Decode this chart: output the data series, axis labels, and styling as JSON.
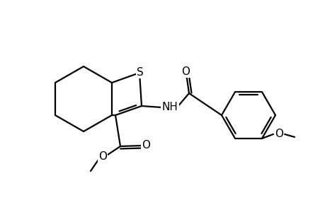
{
  "background_color": "#ffffff",
  "line_color": "#000000",
  "line_width": 1.6,
  "fig_width": 4.6,
  "fig_height": 3.0,
  "dpi": 100,
  "label_fontsize": 11,
  "labels": {
    "S": "S",
    "NH": "NH",
    "O_amide": "O",
    "O_ester_carbonyl": "O",
    "O_ester_single": "O",
    "O_methoxy": "O"
  }
}
